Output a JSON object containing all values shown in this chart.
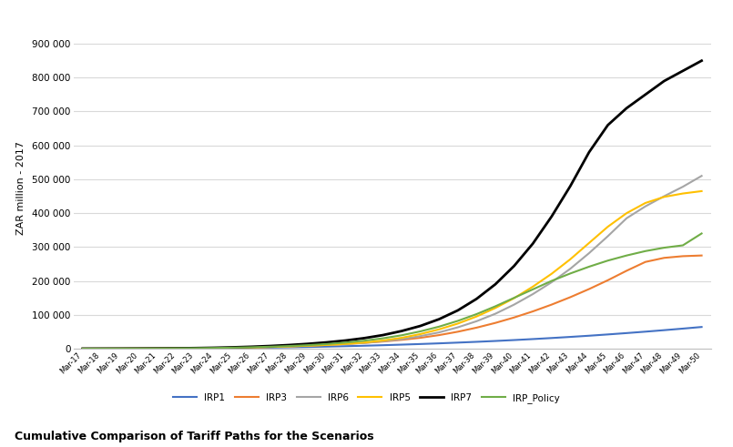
{
  "title": "Cumulative Comparison of Tariff Paths for the Scenarios",
  "ylabel": "ZAR million - 2017",
  "ylim": [
    0,
    950000
  ],
  "yticks": [
    0,
    100000,
    200000,
    300000,
    400000,
    500000,
    600000,
    700000,
    800000,
    900000
  ],
  "x_labels": [
    "Mar-17",
    "Mar-18",
    "Mar-19",
    "Mar-20",
    "Mar-21",
    "Mar-22",
    "Mar-23",
    "Mar-24",
    "Mar-25",
    "Mar-26",
    "Mar-27",
    "Mar-28",
    "Mar-29",
    "Mar-30",
    "Mar-31",
    "Mar-32",
    "Mar-33",
    "Mar-34",
    "Mar-35",
    "Mar-36",
    "Mar-37",
    "Mar-38",
    "Mar-39",
    "Mar-40",
    "Mar-41",
    "Mar-42",
    "Mar-43",
    "Mar-44",
    "Mar-45",
    "Mar-46",
    "Mar-47",
    "Mar-48",
    "Mar-49",
    "Mar-50"
  ],
  "series": {
    "IRP1": {
      "color": "#4472C4",
      "linewidth": 1.5,
      "values": [
        0,
        100,
        200,
        350,
        550,
        800,
        1100,
        1500,
        2000,
        2600,
        3300,
        4100,
        5000,
        6100,
        7300,
        8700,
        10200,
        11900,
        13700,
        15700,
        17900,
        20200,
        22700,
        25400,
        28300,
        31400,
        34700,
        38200,
        42000,
        46000,
        50200,
        54600,
        59200,
        64000
      ]
    },
    "IRP3": {
      "color": "#ED7D31",
      "linewidth": 1.5,
      "values": [
        0,
        100,
        200,
        350,
        550,
        900,
        1400,
        2000,
        2800,
        3800,
        5100,
        6700,
        8700,
        11000,
        13800,
        17000,
        21000,
        26000,
        32000,
        40000,
        50000,
        62000,
        76000,
        92000,
        110000,
        130000,
        152000,
        176000,
        202000,
        230000,
        256000,
        268000,
        273000,
        275000
      ]
    },
    "IRP6": {
      "color": "#A5A5A5",
      "linewidth": 1.5,
      "values": [
        0,
        100,
        200,
        350,
        550,
        900,
        1400,
        2000,
        2800,
        3800,
        5100,
        6700,
        8700,
        11000,
        13800,
        17000,
        22000,
        28000,
        37000,
        48000,
        63000,
        81000,
        103000,
        130000,
        161000,
        196000,
        236000,
        282000,
        332000,
        385000,
        420000,
        450000,
        478000,
        510000
      ]
    },
    "IRP5": {
      "color": "#FFC000",
      "linewidth": 1.5,
      "values": [
        0,
        100,
        200,
        350,
        550,
        900,
        1400,
        2000,
        2800,
        3800,
        5100,
        6700,
        8700,
        11000,
        14000,
        18000,
        24000,
        32000,
        43000,
        57000,
        74000,
        95000,
        120000,
        149000,
        183000,
        221000,
        264000,
        312000,
        360000,
        400000,
        430000,
        448000,
        458000,
        465000
      ]
    },
    "IRP7": {
      "color": "#000000",
      "linewidth": 2.0,
      "values": [
        0,
        100,
        200,
        400,
        700,
        1100,
        1800,
        2700,
        4000,
        5700,
        7900,
        10700,
        14200,
        18600,
        24000,
        31000,
        40000,
        52000,
        67000,
        87000,
        113000,
        147000,
        190000,
        244000,
        310000,
        390000,
        480000,
        580000,
        660000,
        710000,
        750000,
        790000,
        820000,
        850000
      ]
    },
    "IRP_Policy": {
      "color": "#70AD47",
      "linewidth": 1.5,
      "values": [
        0,
        100,
        200,
        350,
        550,
        900,
        1400,
        2100,
        3000,
        4200,
        5800,
        7800,
        10400,
        13700,
        18000,
        23500,
        30500,
        39500,
        51000,
        65000,
        82000,
        102000,
        125000,
        150000,
        175000,
        200000,
        222000,
        242000,
        260000,
        275000,
        288000,
        298000,
        305000,
        340000
      ]
    }
  },
  "legend_order": [
    "IRP1",
    "IRP3",
    "IRP6",
    "IRP5",
    "IRP7",
    "IRP_Policy"
  ],
  "background_color": "#FFFFFF",
  "grid_color": "#D9D9D9"
}
